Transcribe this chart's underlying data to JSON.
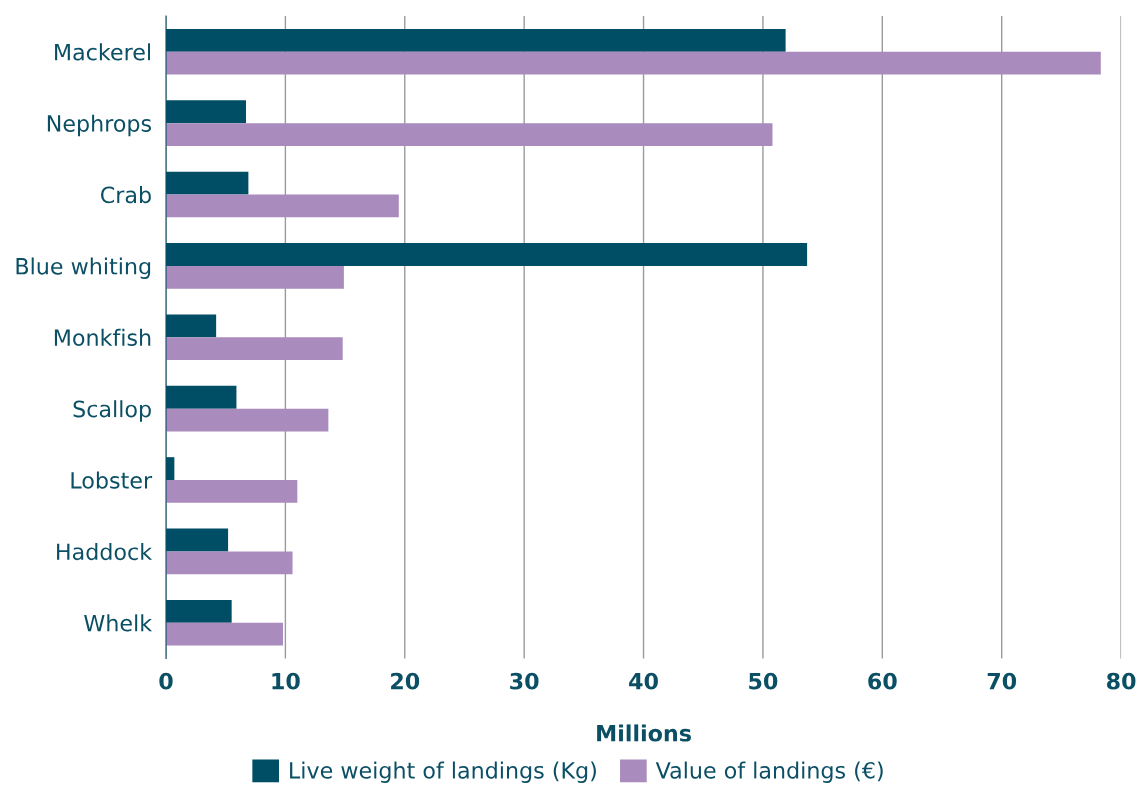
{
  "chart_data": {
    "type": "bar",
    "orientation": "horizontal",
    "xlabel": "Millions",
    "categories": [
      "Mackerel",
      "Nephrops",
      "Crab",
      "Blue whiting",
      "Monkfish",
      "Scallop",
      "Lobster",
      "Haddock",
      "Whelk"
    ],
    "series": [
      {
        "name": "Live weight of landings (Kg)",
        "color": "#004d66",
        "values": [
          51.9,
          6.7,
          6.9,
          53.7,
          4.2,
          5.9,
          0.7,
          5.2,
          5.5
        ]
      },
      {
        "name": "Value of landings (€)",
        "color": "#a98bbd",
        "values": [
          78.3,
          50.8,
          19.5,
          14.9,
          14.8,
          13.6,
          11.0,
          10.6,
          9.8
        ]
      }
    ],
    "xlim": [
      0,
      80
    ],
    "xticks": [
      0,
      10,
      20,
      30,
      40,
      50,
      60,
      70,
      80
    ],
    "grid": "x",
    "legend": "bottom"
  }
}
